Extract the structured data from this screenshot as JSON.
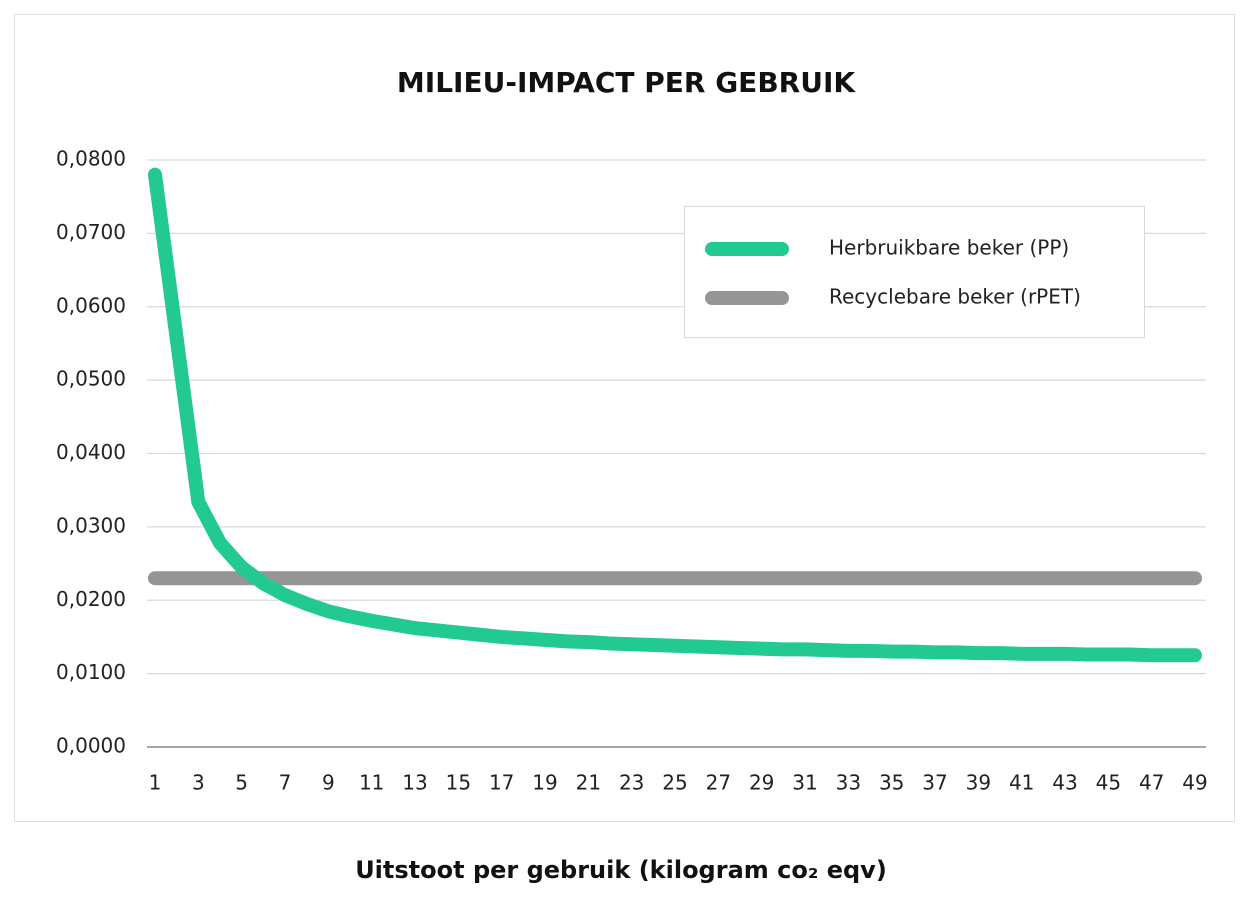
{
  "chart_data": {
    "type": "line",
    "title": "MILIEU-IMPACT PER GEBRUIK",
    "x_label": "Uitstoot per gebruik (kilogram co₂ eqv)",
    "x": [
      1,
      2,
      3,
      4,
      5,
      6,
      7,
      8,
      9,
      10,
      11,
      12,
      13,
      14,
      15,
      16,
      17,
      18,
      19,
      20,
      21,
      22,
      23,
      24,
      25,
      26,
      27,
      28,
      29,
      30,
      31,
      32,
      33,
      34,
      35,
      36,
      37,
      38,
      39,
      40,
      41,
      42,
      43,
      44,
      45,
      46,
      47,
      48,
      49
    ],
    "xlim": [
      1,
      49
    ],
    "xticks": [
      1,
      3,
      5,
      7,
      9,
      11,
      13,
      15,
      17,
      19,
      21,
      23,
      25,
      27,
      29,
      31,
      33,
      35,
      37,
      39,
      41,
      43,
      45,
      47,
      49
    ],
    "ylim": [
      0,
      0.08
    ],
    "yticks": [
      {
        "value": 0,
        "label": "0,0000"
      },
      {
        "value": 0.01,
        "label": "0,0100"
      },
      {
        "value": 0.02,
        "label": "0,0200"
      },
      {
        "value": 0.03,
        "label": "0,0300"
      },
      {
        "value": 0.04,
        "label": "0,0400"
      },
      {
        "value": 0.05,
        "label": "0,0500"
      },
      {
        "value": 0.06,
        "label": "0,0600"
      },
      {
        "value": 0.07,
        "label": "0,0700"
      },
      {
        "value": 0.08,
        "label": "0,0800"
      }
    ],
    "grid": true,
    "legend": "upper right",
    "series": [
      {
        "name": "Herbruikbare beker (PP)",
        "color": "#22c993",
        "values": [
          0.078,
          0.0557,
          0.0334,
          0.0278,
          0.0245,
          0.0223,
          0.0207,
          0.0195,
          0.0185,
          0.0178,
          0.0172,
          0.0167,
          0.0162,
          0.0159,
          0.0156,
          0.0153,
          0.015,
          0.0148,
          0.0146,
          0.0144,
          0.0143,
          0.0141,
          0.014,
          0.0139,
          0.0138,
          0.0137,
          0.0136,
          0.0135,
          0.0134,
          0.0133,
          0.0133,
          0.0132,
          0.0131,
          0.0131,
          0.013,
          0.013,
          0.0129,
          0.0129,
          0.0128,
          0.0128,
          0.0127,
          0.0127,
          0.0127,
          0.0126,
          0.0126,
          0.0126,
          0.0125,
          0.0125,
          0.0125
        ]
      },
      {
        "name": "Recyclebare beker (rPET)",
        "color": "#959595",
        "values": [
          0.023,
          0.023,
          0.023,
          0.023,
          0.023,
          0.023,
          0.023,
          0.023,
          0.023,
          0.023,
          0.023,
          0.023,
          0.023,
          0.023,
          0.023,
          0.023,
          0.023,
          0.023,
          0.023,
          0.023,
          0.023,
          0.023,
          0.023,
          0.023,
          0.023,
          0.023,
          0.023,
          0.023,
          0.023,
          0.023,
          0.023,
          0.023,
          0.023,
          0.023,
          0.023,
          0.023,
          0.023,
          0.023,
          0.023,
          0.023,
          0.023,
          0.023,
          0.023,
          0.023,
          0.023,
          0.023,
          0.023,
          0.023,
          0.023
        ]
      }
    ]
  }
}
